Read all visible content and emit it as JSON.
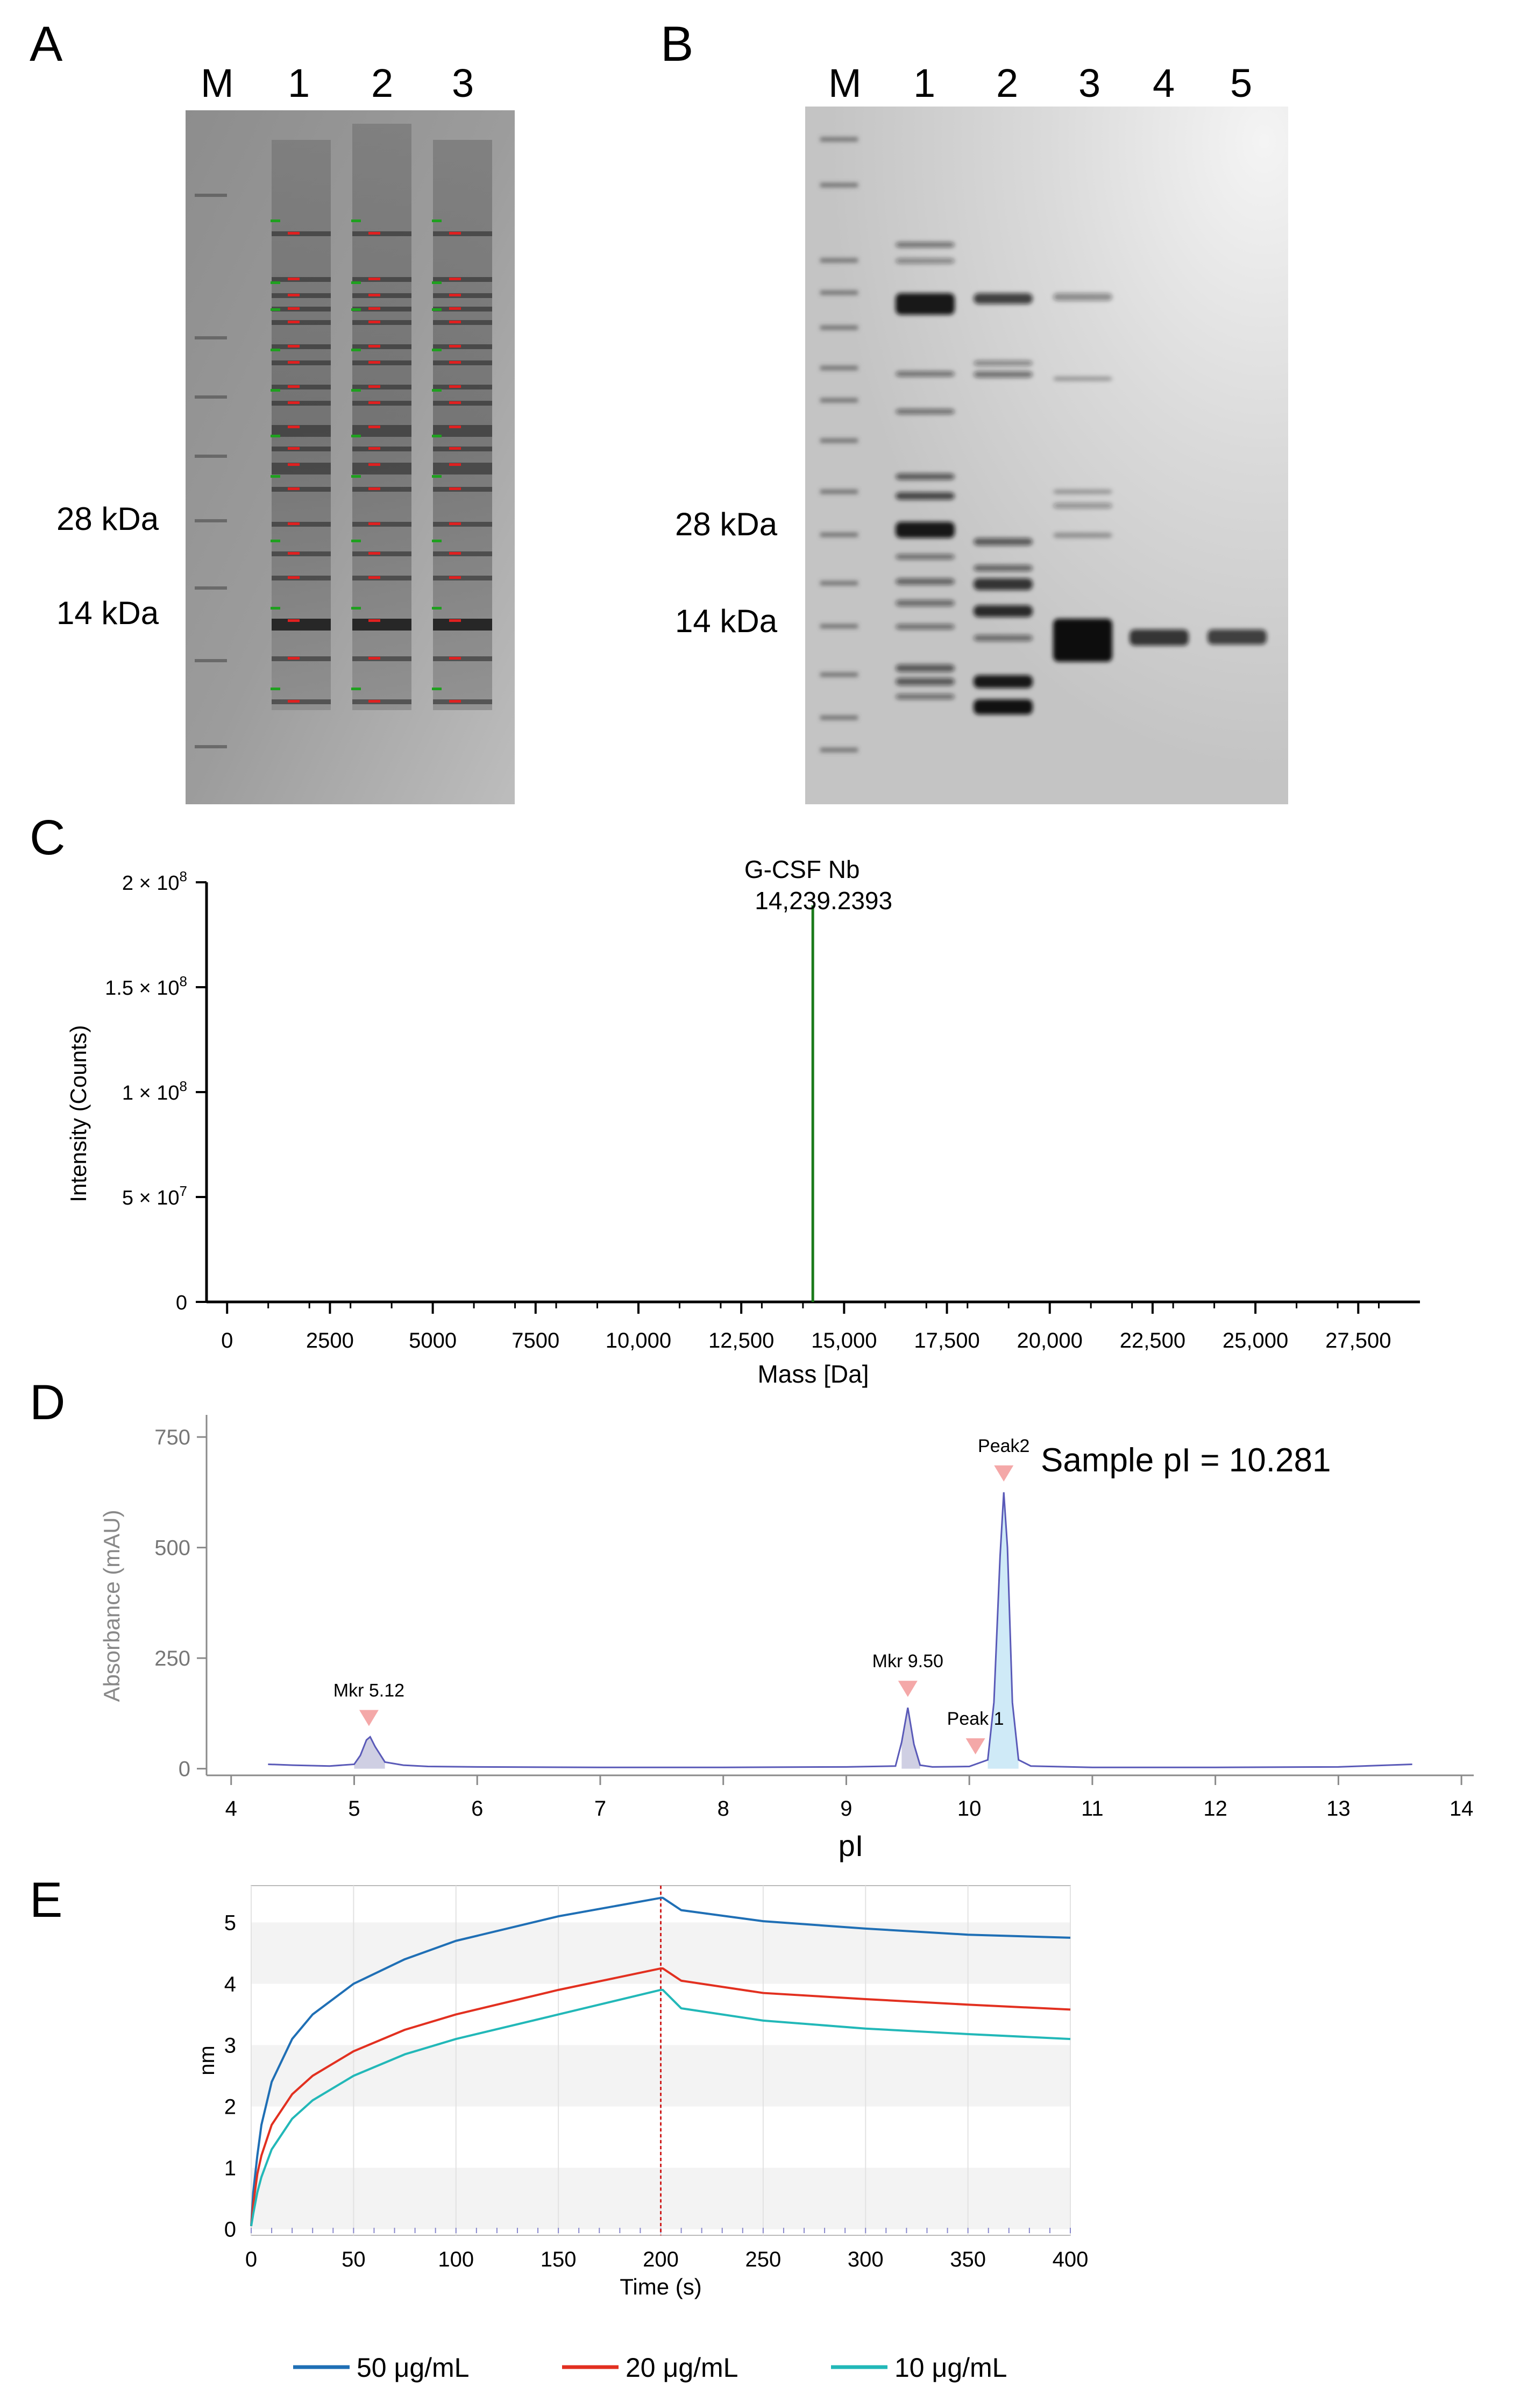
{
  "panels": {
    "A": {
      "letter": "A",
      "lane_labels": [
        "M",
        "1",
        "2",
        "3"
      ],
      "size_labels": [
        "28 kDa",
        "14 kDa"
      ]
    },
    "B": {
      "letter": "B",
      "lane_labels": [
        "M",
        "1",
        "2",
        "3",
        "4",
        "5"
      ],
      "size_labels": [
        "28 kDa",
        "14 kDa"
      ]
    },
    "C": {
      "letter": "C"
    },
    "D": {
      "letter": "D"
    },
    "E": {
      "letter": "E"
    }
  },
  "chart_data": [
    {
      "id": "C",
      "type": "bar",
      "xlabel": "Mass [Da]",
      "ylabel": "Intensity (Counts)",
      "xlim": [
        -500,
        29000
      ],
      "ylim": [
        0,
        200000000
      ],
      "x_ticks": [
        0,
        2500,
        5000,
        7500,
        10000,
        12500,
        15000,
        17500,
        20000,
        22500,
        25000,
        27500
      ],
      "x_tick_labels": [
        "0",
        "2500",
        "5000",
        "7500",
        "10,000",
        "12,500",
        "15,000",
        "17,500",
        "20,000",
        "22,500",
        "25,000",
        "27,500"
      ],
      "y_ticks": [
        0,
        50000000,
        100000000,
        150000000,
        200000000
      ],
      "y_tick_labels": [
        "0",
        "5 × 10",
        "1 × 10",
        "1.5 × 10",
        "2 × 10"
      ],
      "y_tick_exponents": [
        "",
        "7",
        "8",
        "8",
        "8"
      ],
      "series": [
        {
          "x": [
            14239.2393
          ],
          "values": [
            189000000
          ],
          "color": "#1a7a1a"
        }
      ],
      "annotations": [
        {
          "x": 14239.2393,
          "line1": "G-CSF Nb",
          "line2": "14,239.2393"
        }
      ]
    },
    {
      "id": "D",
      "type": "line",
      "xlabel": "pI",
      "ylabel": "Absorbance (mAU)",
      "xlim": [
        3.8,
        14.1
      ],
      "ylim": [
        -15,
        800
      ],
      "x_ticks": [
        4,
        5,
        6,
        7,
        8,
        9,
        10,
        11,
        12,
        13,
        14
      ],
      "y_ticks": [
        0,
        250,
        500,
        750
      ],
      "color": "#5a5ab8",
      "series": [
        {
          "x": [
            4.3,
            4.5,
            4.8,
            5.0,
            5.05,
            5.1,
            5.13,
            5.17,
            5.25,
            5.4,
            5.6,
            6.0,
            7.0,
            8.0,
            9.0,
            9.4,
            9.45,
            9.5,
            9.55,
            9.6,
            9.7,
            10.0,
            10.15,
            10.2,
            10.25,
            10.28,
            10.31,
            10.35,
            10.4,
            10.5,
            11.0,
            12.0,
            13.0,
            13.6
          ],
          "values": [
            10,
            8,
            6,
            10,
            30,
            65,
            72,
            50,
            15,
            8,
            5,
            4,
            3,
            3,
            4,
            6,
            60,
            138,
            55,
            8,
            4,
            5,
            20,
            150,
            480,
            625,
            500,
            150,
            20,
            6,
            3,
            3,
            4,
            10
          ]
        }
      ],
      "annotations": [
        {
          "label": "Mkr 5.12",
          "x": 5.12,
          "y": 72
        },
        {
          "label": "Mkr 9.50",
          "x": 9.5,
          "y": 138
        },
        {
          "label": "Peak 1",
          "x": 10.05,
          "y": 8
        },
        {
          "label": "Peak2",
          "x": 10.28,
          "y": 625
        }
      ],
      "note": "Sample pI = 10.281"
    },
    {
      "id": "E",
      "type": "line",
      "xlabel": "Time (s)",
      "ylabel": "nm",
      "xlim": [
        0,
        400
      ],
      "ylim": [
        -0.1,
        5.6
      ],
      "x_ticks": [
        0,
        50,
        100,
        150,
        200,
        250,
        300,
        350,
        400
      ],
      "y_ticks": [
        0,
        1,
        2,
        3,
        4,
        5
      ],
      "marker_x": 200,
      "legend_position": "bottom",
      "series": [
        {
          "name": "50 μg/mL",
          "color": "#1f6fb5",
          "x": [
            0,
            1,
            3,
            5,
            10,
            20,
            30,
            50,
            75,
            100,
            150,
            200,
            201,
            210,
            250,
            300,
            350,
            400
          ],
          "values": [
            0.05,
            0.6,
            1.2,
            1.7,
            2.4,
            3.1,
            3.5,
            4.0,
            4.4,
            4.7,
            5.1,
            5.4,
            5.4,
            5.2,
            5.02,
            4.9,
            4.8,
            4.75
          ]
        },
        {
          "name": "20 μg/mL",
          "color": "#e23020",
          "x": [
            0,
            1,
            3,
            5,
            10,
            20,
            30,
            50,
            75,
            100,
            150,
            200,
            201,
            210,
            250,
            300,
            350,
            400
          ],
          "values": [
            0.05,
            0.4,
            0.9,
            1.2,
            1.7,
            2.2,
            2.5,
            2.9,
            3.25,
            3.5,
            3.9,
            4.25,
            4.25,
            4.05,
            3.85,
            3.75,
            3.66,
            3.58
          ]
        },
        {
          "name": "10 μg/mL",
          "color": "#22b8b8",
          "x": [
            0,
            1,
            3,
            5,
            10,
            20,
            30,
            50,
            75,
            100,
            150,
            200,
            201,
            210,
            250,
            300,
            350,
            400
          ],
          "values": [
            0.05,
            0.25,
            0.6,
            0.85,
            1.3,
            1.8,
            2.1,
            2.5,
            2.85,
            3.1,
            3.5,
            3.9,
            3.9,
            3.6,
            3.4,
            3.27,
            3.18,
            3.1
          ]
        }
      ]
    }
  ]
}
